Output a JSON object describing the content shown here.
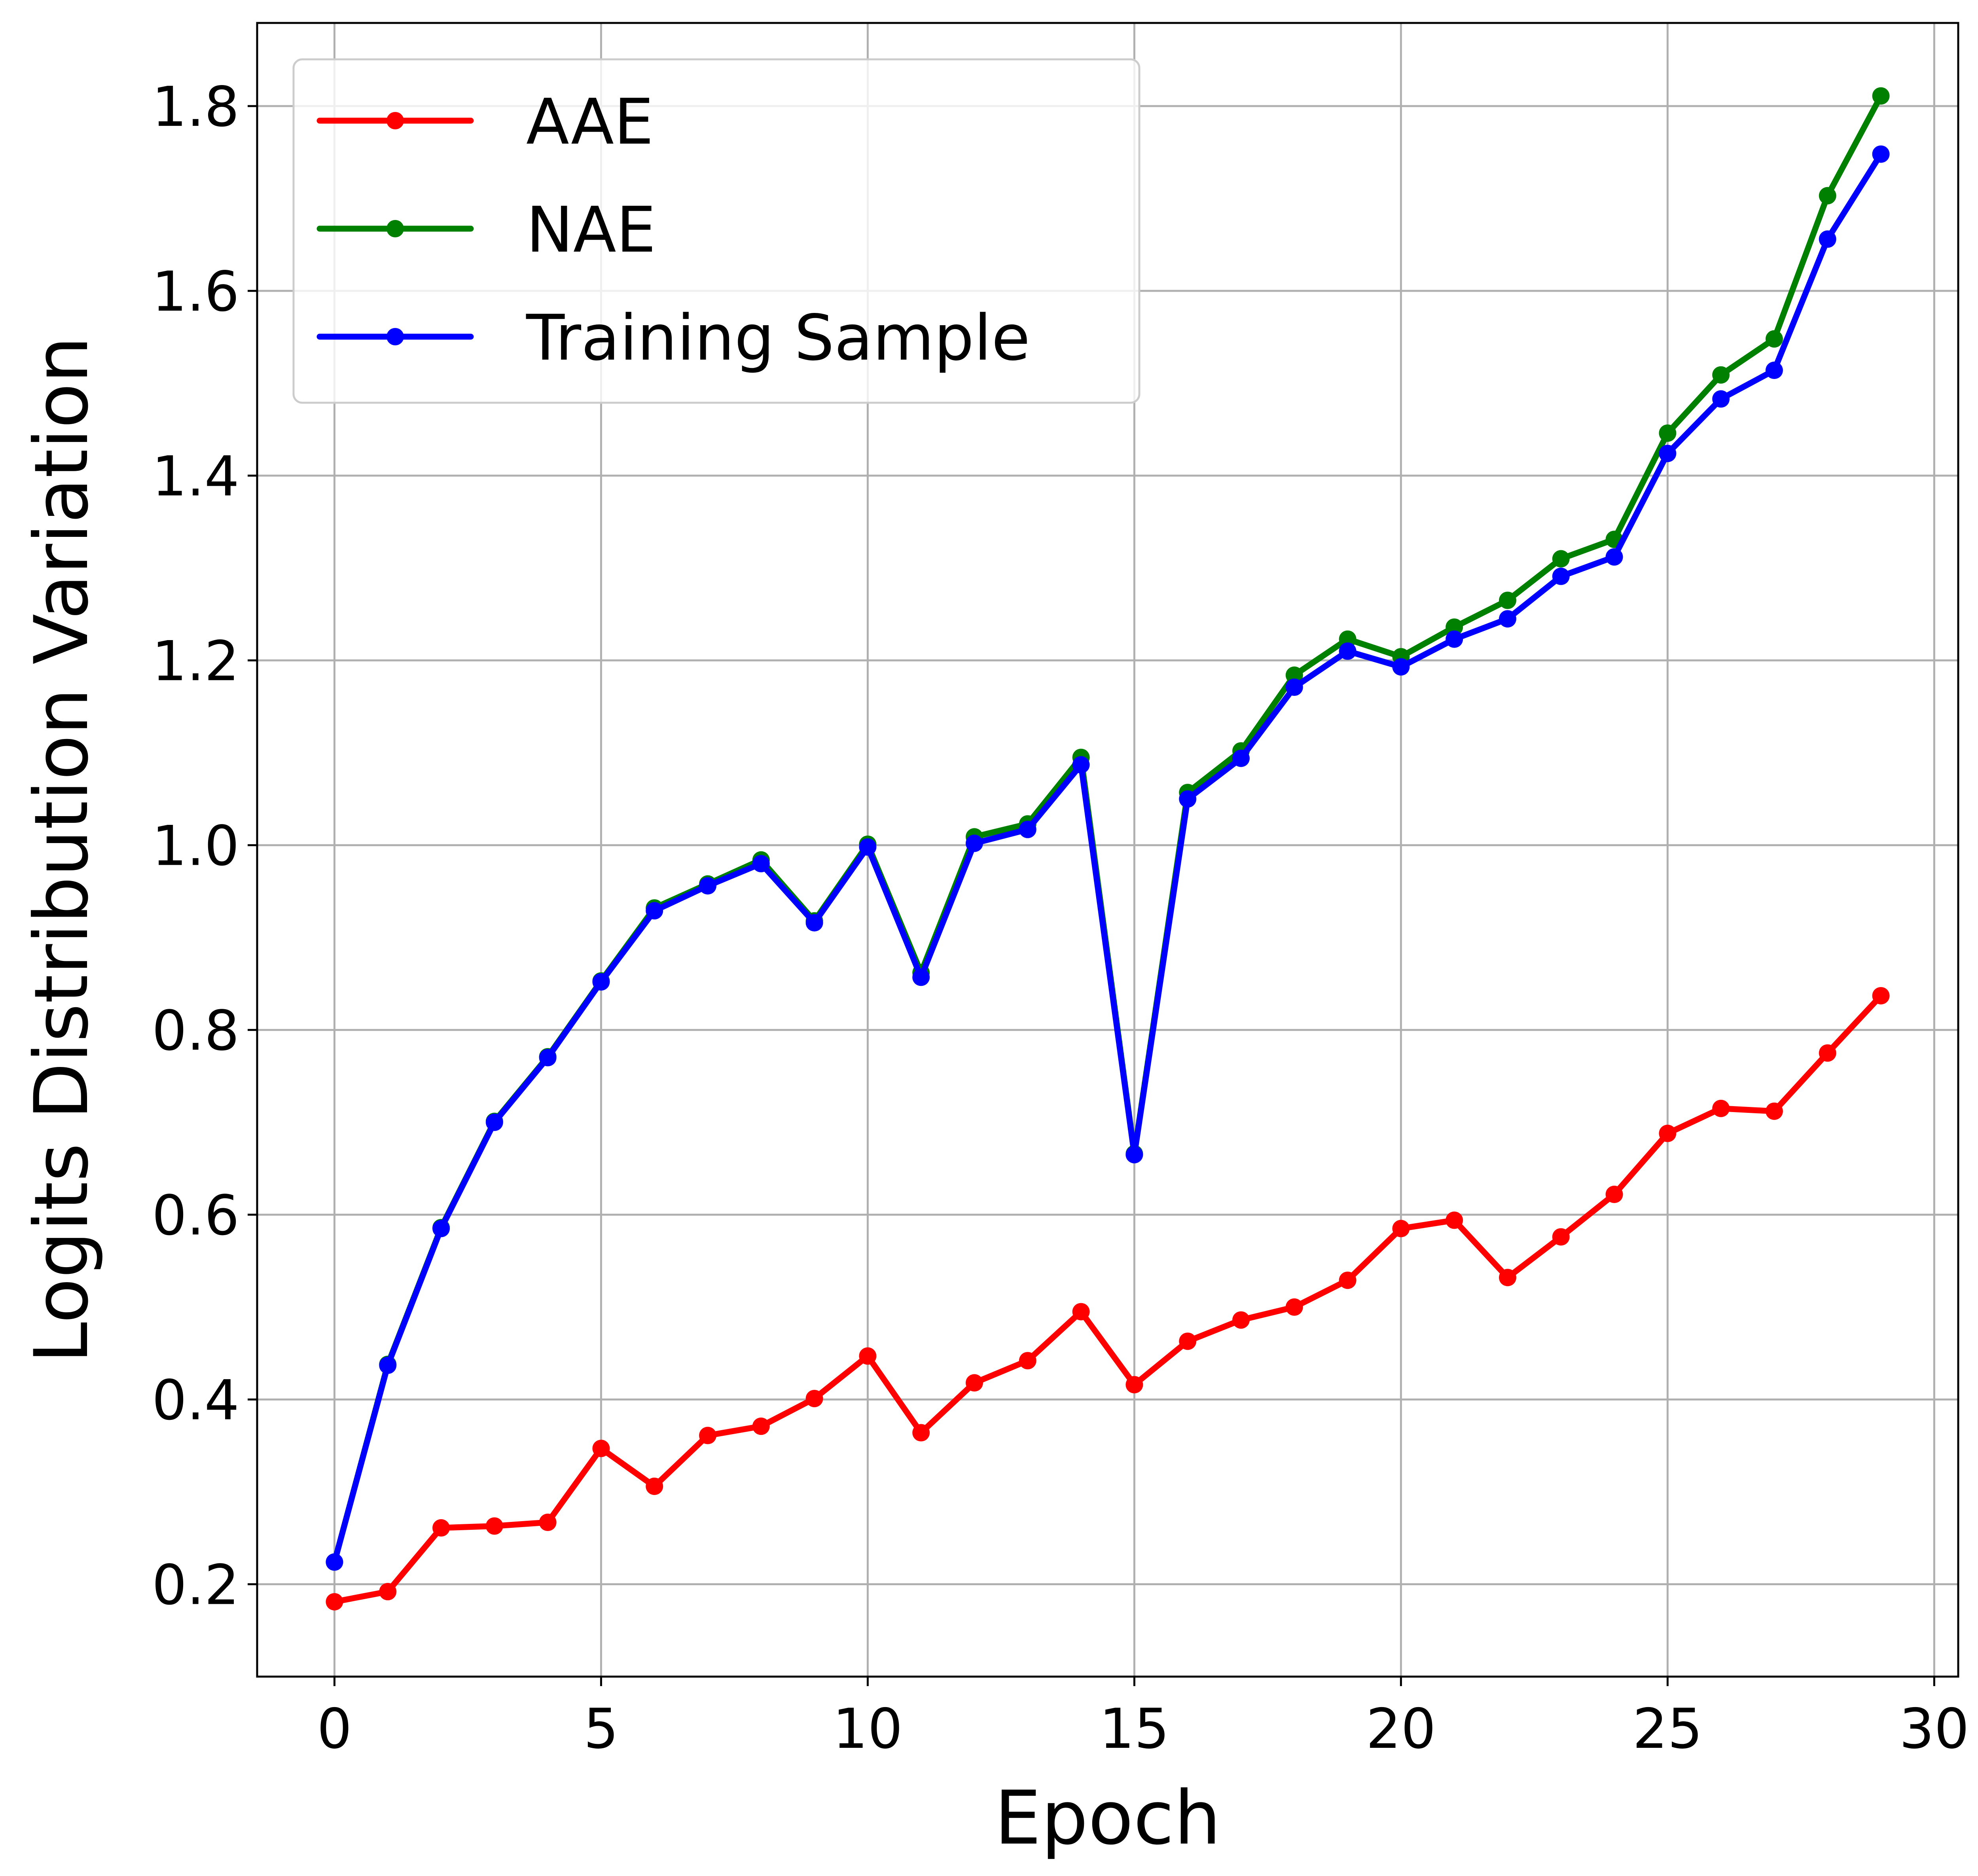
{
  "chart_data": {
    "type": "line",
    "title": "",
    "xlabel": "Epoch",
    "ylabel": "Logits Distribution Variation",
    "xlim": [
      -1.45,
      30.45
    ],
    "ylim": [
      0.1,
      1.89
    ],
    "xticks": [
      0,
      5,
      10,
      15,
      20,
      25,
      30
    ],
    "xtick_labels": [
      "0",
      "5",
      "10",
      "15",
      "20",
      "25",
      "30"
    ],
    "yticks": [
      0.2,
      0.4,
      0.6,
      0.8,
      1.0,
      1.2,
      1.4,
      1.6,
      1.8
    ],
    "ytick_labels": [
      "0.2",
      "0.4",
      "0.6",
      "0.8",
      "1.0",
      "1.2",
      "1.4",
      "1.6",
      "1.8"
    ],
    "grid": true,
    "legend_position": "top-left",
    "x": [
      0,
      1,
      2,
      3,
      4,
      5,
      6,
      7,
      8,
      9,
      10,
      11,
      12,
      13,
      14,
      15,
      16,
      17,
      18,
      19,
      20,
      21,
      22,
      23,
      24,
      25,
      26,
      27,
      28,
      29
    ],
    "series": [
      {
        "name": "AAE",
        "color": "#ff0000",
        "values": [
          0.181,
          0.192,
          0.261,
          0.263,
          0.267,
          0.347,
          0.306,
          0.361,
          0.371,
          0.401,
          0.447,
          0.364,
          0.418,
          0.442,
          0.495,
          0.416,
          0.463,
          0.486,
          0.5,
          0.529,
          0.585,
          0.594,
          0.532,
          0.576,
          0.622,
          0.688,
          0.715,
          0.712,
          0.775,
          0.837
        ]
      },
      {
        "name": "NAE",
        "color": "#008000",
        "values": [
          0.224,
          0.438,
          0.586,
          0.701,
          0.771,
          0.853,
          0.932,
          0.958,
          0.984,
          0.918,
          1.001,
          0.862,
          1.009,
          1.023,
          1.095,
          0.666,
          1.057,
          1.102,
          1.184,
          1.223,
          1.204,
          1.236,
          1.265,
          1.31,
          1.331,
          1.446,
          1.509,
          1.548,
          1.703,
          1.811
        ]
      },
      {
        "name": "Training Sample",
        "color": "#0000ff",
        "values": [
          0.224,
          0.437,
          0.585,
          0.7,
          0.77,
          0.852,
          0.929,
          0.956,
          0.98,
          0.916,
          0.998,
          0.857,
          1.002,
          1.017,
          1.087,
          0.665,
          1.05,
          1.094,
          1.171,
          1.21,
          1.193,
          1.223,
          1.245,
          1.291,
          1.312,
          1.424,
          1.483,
          1.514,
          1.656,
          1.748
        ]
      }
    ]
  }
}
